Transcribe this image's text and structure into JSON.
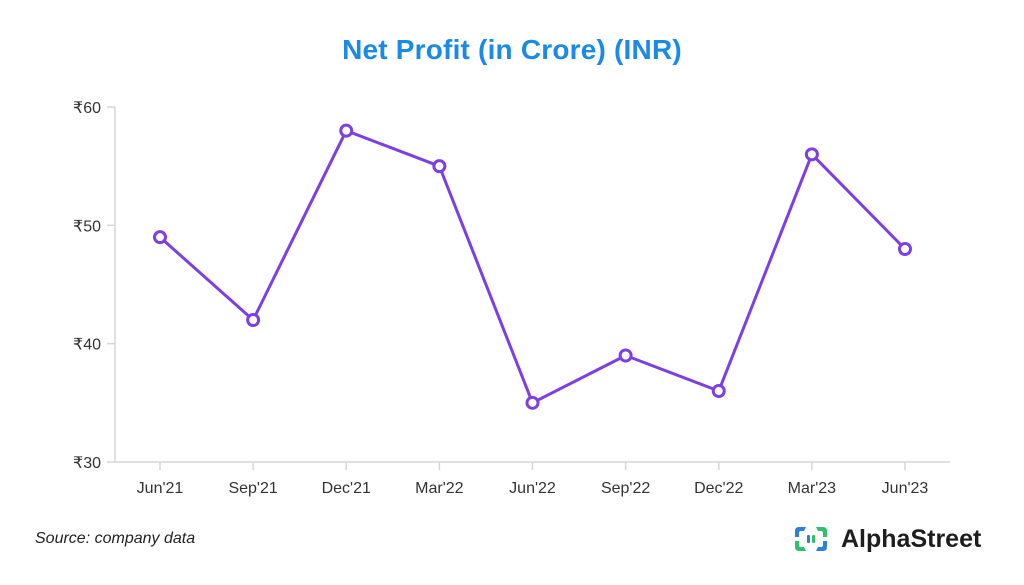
{
  "chart_data": {
    "type": "line",
    "title": "Net Profit (in Crore) (INR)",
    "xlabel": "",
    "ylabel": "",
    "categories": [
      "Jun'21",
      "Sep'21",
      "Dec'21",
      "Mar'22",
      "Jun'22",
      "Sep'22",
      "Dec'22",
      "Mar'23",
      "Jun'23"
    ],
    "series": [
      {
        "values": [
          49,
          42,
          58,
          55,
          35,
          39,
          36,
          56,
          48
        ]
      }
    ],
    "ylim": [
      30,
      60
    ],
    "yticks": [
      30,
      40,
      50,
      60
    ],
    "ytick_labels": [
      "₹30",
      "₹40",
      "₹50",
      "₹60"
    ],
    "grid": false,
    "legend": "none",
    "line_color": "#7b3fe4"
  },
  "footer": {
    "source": "Source: company data",
    "brand": "AlphaStreet"
  },
  "colors": {
    "title": "#1a8ae6",
    "axis": "#d6d6d6",
    "logo_blue": "#2f7fd8",
    "logo_green": "#2fbf71"
  }
}
